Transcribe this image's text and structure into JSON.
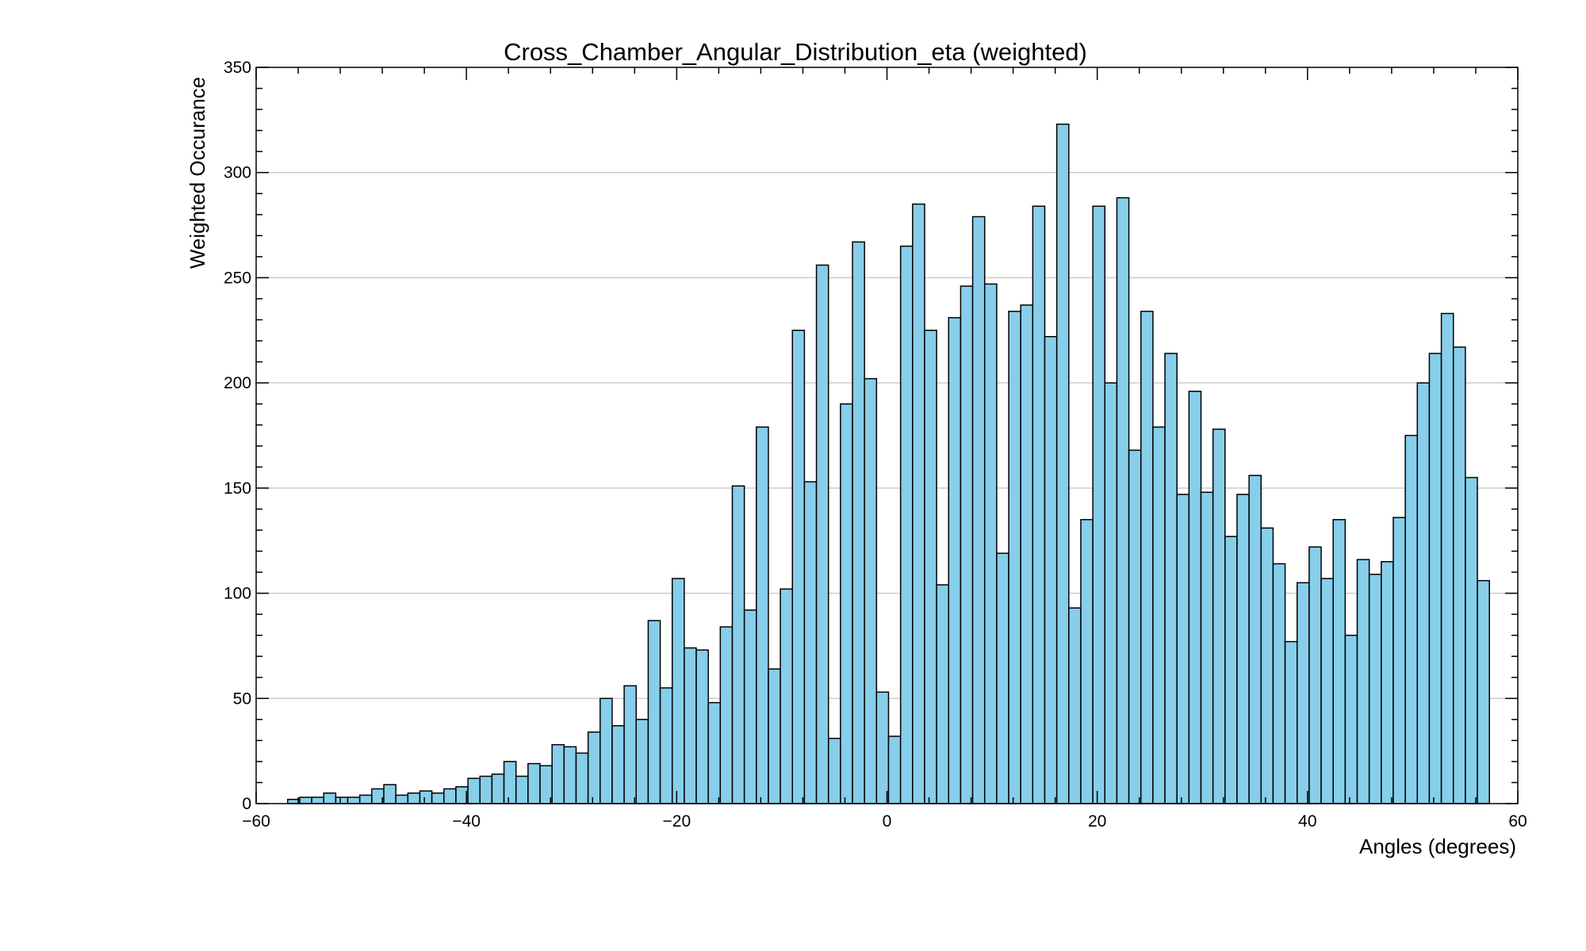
{
  "chart_data": {
    "type": "bar",
    "title": "Cross_Chamber_Angular_Distribution_eta (weighted)",
    "xlabel": "Angles (degrees)",
    "ylabel": "Weighted Occurance",
    "xlim": [
      -60,
      60
    ],
    "ylim": [
      0,
      350
    ],
    "xticks": [
      -60,
      -40,
      -20,
      0,
      20,
      40,
      60
    ],
    "yticks": [
      0,
      50,
      100,
      150,
      200,
      250,
      300,
      350
    ],
    "grid": "horizontal",
    "bin_edges_start": -57,
    "bin_width": 1.143,
    "values": [
      2,
      3,
      3,
      5,
      3,
      3,
      4,
      7,
      9,
      4,
      5,
      6,
      5,
      7,
      8,
      12,
      13,
      14,
      20,
      13,
      19,
      18,
      28,
      27,
      24,
      34,
      50,
      37,
      56,
      40,
      87,
      55,
      107,
      74,
      73,
      48,
      84,
      151,
      92,
      179,
      64,
      102,
      225,
      153,
      256,
      31,
      190,
      267,
      202,
      53,
      32,
      265,
      285,
      225,
      104,
      231,
      246,
      279,
      247,
      119,
      234,
      237,
      284,
      222,
      323,
      93,
      135,
      284,
      200,
      288,
      168,
      234,
      179,
      214,
      147,
      196,
      148,
      178,
      127,
      147,
      156,
      131,
      114,
      77,
      105,
      122,
      107,
      135,
      80,
      116,
      109,
      115,
      136,
      175,
      200,
      214,
      233,
      217,
      155,
      106
    ],
    "colors": {
      "bar_fill": "#87ceeb",
      "bar_edge": "#000000",
      "grid": "#cccccc"
    }
  }
}
